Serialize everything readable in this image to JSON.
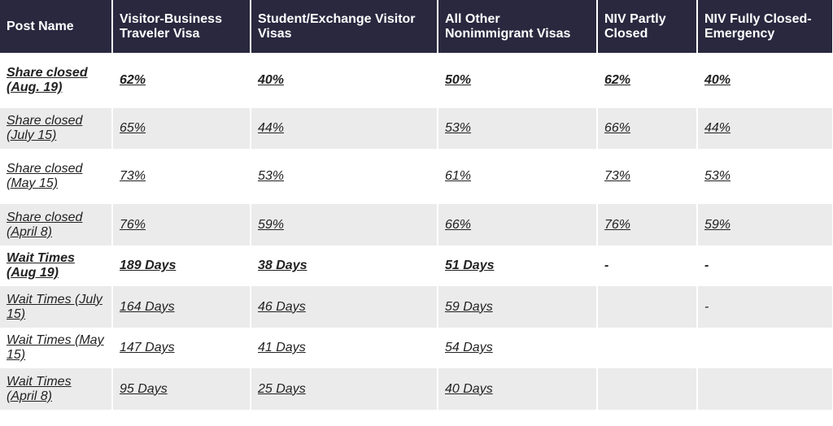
{
  "headers": [
    "Post Name",
    "Visitor-Business Traveler Visa",
    "Student/Exchange Visitor Visas",
    "All Other Nonimmigrant Visas",
    "NIV Partly Closed",
    "NIV Fully Closed-Emergency"
  ],
  "rows": [
    {
      "cells": [
        "Share closed (Aug. 19)",
        "62%",
        "40%",
        "50%",
        "62%",
        "40%"
      ],
      "bold": true
    },
    {
      "cells": [
        "Share closed (July 15)",
        "65%",
        "44%",
        "53%",
        "66%",
        "44%"
      ]
    },
    {
      "cells": [
        "Share closed (May 15)",
        "73%",
        "53%",
        "61%",
        "73%",
        "53%"
      ]
    },
    {
      "cells": [
        "Share closed (April 8)",
        "76%",
        "59%",
        "66%",
        "76%",
        "59%"
      ]
    },
    {
      "cells": [
        "Wait Times (Aug 19)",
        "189 Days",
        "38 Days",
        "51 Days",
        "-",
        "-"
      ],
      "bold": true
    },
    {
      "cells": [
        "Wait Times (July 15)",
        "164 Days",
        "46 Days",
        "59 Days",
        "",
        "-"
      ]
    },
    {
      "cells": [
        "Wait Times (May 15)",
        "147 Days",
        "41 Days",
        "54 Days",
        "",
        ""
      ]
    },
    {
      "cells": [
        "Wait Times (April 8)",
        "95 Days",
        "25 Days",
        "40 Days",
        "",
        ""
      ]
    }
  ]
}
